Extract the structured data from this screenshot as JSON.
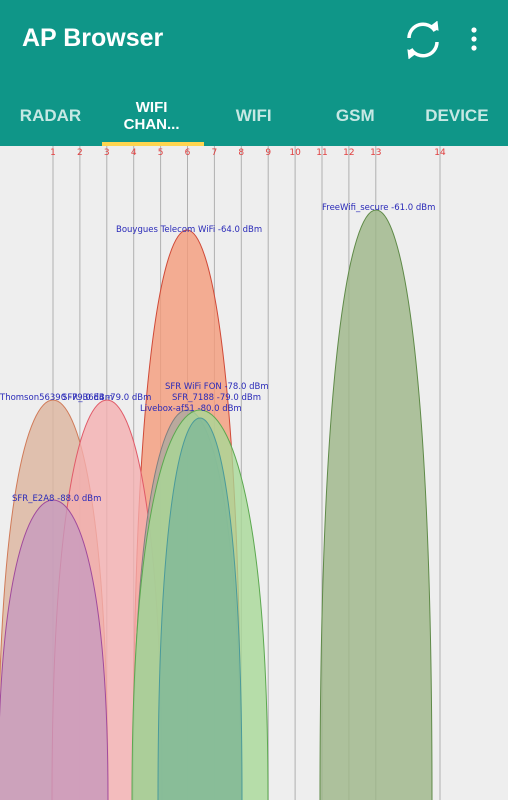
{
  "app_bar": {
    "title": "AP Browser"
  },
  "tabs": [
    "RADAR",
    "WIFI CHAN...",
    "WIFI",
    "GSM",
    "DEVICE"
  ],
  "channels": [
    1,
    2,
    3,
    4,
    5,
    6,
    7,
    8,
    9,
    10,
    11,
    12,
    13,
    14
  ],
  "networks": [
    {
      "label": "FreeWifi_secure -61.0 dBm"
    },
    {
      "label": "Bouygues Telecom WiFi -64.0 dBm"
    },
    {
      "label": "Thomson56390 -79.0 dBm"
    },
    {
      "label": "SFR_B6E4 -79.0 dBm"
    },
    {
      "label": "SFR WiFi FON -78.0 dBm"
    },
    {
      "label": "SFR_7188 -79.0 dBm"
    },
    {
      "label": "Livebox-af51 -80.0 dBm"
    },
    {
      "label": "SFR_E2A8 -88.0 dBm"
    }
  ]
}
